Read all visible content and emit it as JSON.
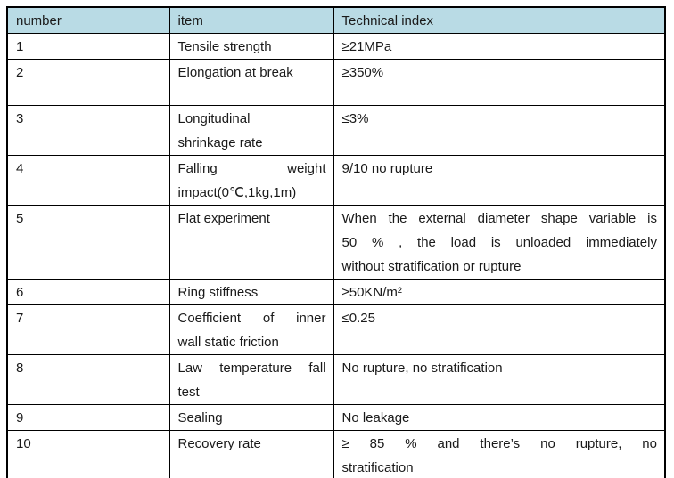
{
  "table": {
    "title": "technical-index-table",
    "headers": {
      "number": "number",
      "item": "item",
      "index": "Technical index"
    },
    "rows": [
      {
        "number": "1",
        "item": "Tensile strength",
        "index": "≥21MPa"
      },
      {
        "number": "2",
        "item": "Elongation at break",
        "index": "≥350%"
      },
      {
        "number": "3",
        "item_lines": [
          "Longitudinal",
          "shrinkage rate"
        ],
        "index": "≤3%"
      },
      {
        "number": "4",
        "item_lines": [
          "Falling weight",
          "impact(0℃,1kg,1m)"
        ],
        "index": "9/10 no rupture"
      },
      {
        "number": "5",
        "item": "Flat experiment",
        "index_lines": [
          "When the external diameter shape variable is",
          "50 % , the load is unloaded immediately",
          "without stratification or rupture"
        ]
      },
      {
        "number": "6",
        "item": "Ring stiffness",
        "index": "≥50KN/m²"
      },
      {
        "number": "7",
        "item_lines": [
          "Coefficient of inner",
          "wall static friction"
        ],
        "index": "≤0.25"
      },
      {
        "number": "8",
        "item_lines": [
          "Law temperature fall",
          "test"
        ],
        "index": "No rupture, no stratification"
      },
      {
        "number": "9",
        "item": "Sealing",
        "index": "No leakage"
      },
      {
        "number": "10",
        "item": "Recovery rate",
        "index_lines": [
          "≥ 85 %   and there’s no rupture, no",
          "stratification"
        ]
      }
    ]
  },
  "colors": {
    "header_background": "#b9dbe5",
    "border": "#000000",
    "text": "#1a1a1a",
    "page_background": "#ffffff"
  }
}
